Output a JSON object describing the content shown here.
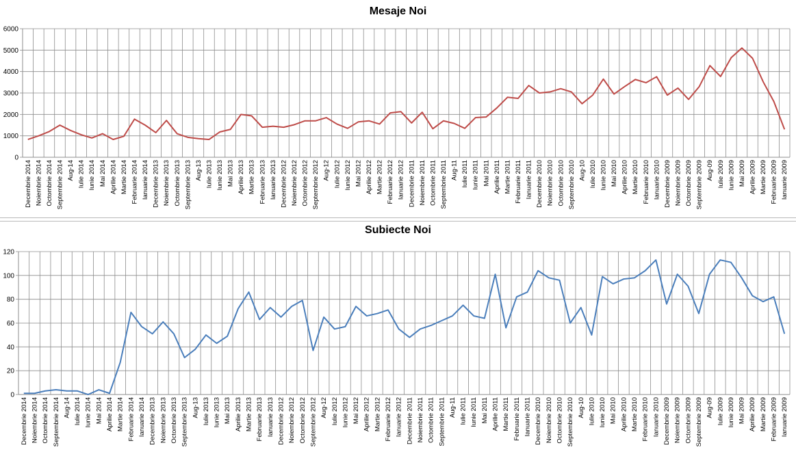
{
  "chart_data": [
    {
      "type": "line",
      "title": "Mesaje Noi",
      "color": "#be4b48",
      "ylim": [
        0,
        6000
      ],
      "yticks": [
        0,
        1000,
        2000,
        3000,
        4000,
        5000,
        6000
      ],
      "grid": true,
      "categories": [
        "Decembrie 2014",
        "Noiembrie 2014",
        "Octombrie 2014",
        "Septembrie 2014",
        "Aug-14",
        "Iulie 2014",
        "Iunie 2014",
        "Mai 2014",
        "Aprilie 2014",
        "Martie 2014",
        "Februarie 2014",
        "Ianuarie 2014",
        "Decembrie 2013",
        "Noiembrie 2013",
        "Octombrie 2013",
        "Septembrie 2013",
        "Aug-13",
        "Iulie 2013",
        "Iunie 2013",
        "Mai 2013",
        "Aprilie 2013",
        "Martie 2013",
        "Februarie 2013",
        "Ianuarie 2013",
        "Decembrie 2012",
        "Noiembrie 2012",
        "Octombrie 2012",
        "Septembrie 2012",
        "Aug-12",
        "Iulie 2012",
        "Iunie 2012",
        "Mai 2012",
        "Aprilie 2012",
        "Martie 2012",
        "Februarie 2012",
        "Ianuarie 2012",
        "Decembrie 2011",
        "Noiembrie 2011",
        "Octombrie 2011",
        "Septembrie 2011",
        "Aug-11",
        "Iulie 2011",
        "Iunie 2011",
        "Mai 2011",
        "Aprilie 2011",
        "Martie 2011",
        "Februarie 2011",
        "Ianuarie 2011",
        "Decembrie 2010",
        "Noiembrie 2010",
        "Octombrie 2010",
        "Septembrie 2010",
        "Aug-10",
        "Iulie 2010",
        "Iunie 2010",
        "Mai 2010",
        "Aprilie 2010",
        "Martie 2010",
        "Februarie 2010",
        "Ianuarie 2010",
        "Decembrie 2009",
        "Noiembrie 2009",
        "Octombrie 2009",
        "Septembrie 2009",
        "Aug-09",
        "Iulie 2009",
        "Iunie 2009",
        "Mai 2009",
        "Aprilie 2009",
        "Martie 2009",
        "Februarie 2009",
        "Ianuarie 2009"
      ],
      "values": [
        830,
        1000,
        1200,
        1500,
        1250,
        1050,
        900,
        1100,
        830,
        980,
        1780,
        1500,
        1150,
        1720,
        1100,
        930,
        870,
        830,
        1180,
        1300,
        2000,
        1930,
        1400,
        1450,
        1400,
        1520,
        1700,
        1700,
        1850,
        1550,
        1350,
        1650,
        1700,
        1550,
        2070,
        2130,
        1600,
        2100,
        1330,
        1700,
        1580,
        1350,
        1850,
        1880,
        2300,
        2800,
        2750,
        3350,
        3000,
        3050,
        3200,
        3050,
        2500,
        2900,
        3650,
        2950,
        3300,
        3630,
        3480,
        3760,
        2900,
        3230,
        2700,
        3300,
        4280,
        3770,
        4650,
        5100,
        4620,
        3520,
        2600,
        1300
      ]
    },
    {
      "type": "line",
      "title": "Subiecte Noi",
      "color": "#4a7ebb",
      "ylim": [
        0,
        120
      ],
      "yticks": [
        0,
        20,
        40,
        60,
        80,
        100,
        120
      ],
      "grid": true,
      "categories": [
        "Decembrie 2014",
        "Noiembrie 2014",
        "Octombrie 2014",
        "Septembrie 2014",
        "Aug-14",
        "Iulie 2014",
        "Iunie 2014",
        "Mai 2014",
        "Aprilie 2014",
        "Martie 2014",
        "Februarie 2014",
        "Ianuarie 2014",
        "Decembrie 2013",
        "Noiembrie 2013",
        "Octombrie 2013",
        "Septembrie 2013",
        "Aug-13",
        "Iulie 2013",
        "Iunie 2013",
        "Mai 2013",
        "Aprilie 2013",
        "Martie 2013",
        "Februarie 2013",
        "Ianuarie 2013",
        "Decembrie 2012",
        "Noiembrie 2012",
        "Octombrie 2012",
        "Septembrie 2012",
        "Aug-12",
        "Iulie 2012",
        "Iunie 2012",
        "Mai 2012",
        "Aprilie 2012",
        "Martie 2012",
        "Februarie 2012",
        "Ianuarie 2012",
        "Decembrie 2011",
        "Noiembrie 2011",
        "Octombrie 2011",
        "Septembrie 2011",
        "Aug-11",
        "Iulie 2011",
        "Iunie 2011",
        "Mai 2011",
        "Aprilie 2011",
        "Martie 2011",
        "Februarie 2011",
        "Ianuarie 2011",
        "Decembrie 2010",
        "Noiembrie 2010",
        "Octombrie 2010",
        "Septembrie 2010",
        "Aug-10",
        "Iulie 2010",
        "Iunie 2010",
        "Mai 2010",
        "Aprilie 2010",
        "Martie 2010",
        "Februarie 2010",
        "Ianuarie 2010",
        "Decembrie 2009",
        "Noiembrie 2009",
        "Octombrie 2009",
        "Septembrie 2009",
        "Aug-09",
        "Iulie 2009",
        "Iunie 2009",
        "Mai 2009",
        "Aprilie 2009",
        "Martie 2009",
        "Februarie 2009",
        "Ianuarie 2009"
      ],
      "values": [
        1,
        1,
        3,
        4,
        3,
        3,
        0,
        4,
        1,
        27,
        69,
        57,
        51,
        61,
        51,
        31,
        38,
        50,
        43,
        49,
        72,
        86,
        63,
        73,
        65,
        74,
        79,
        37,
        65,
        55,
        57,
        74,
        66,
        68,
        71,
        55,
        48,
        55,
        58,
        62,
        66,
        75,
        66,
        64,
        101,
        56,
        82,
        86,
        104,
        98,
        96,
        60,
        73,
        50,
        99,
        93,
        97,
        98,
        104,
        113,
        76,
        101,
        91,
        68,
        101,
        113,
        111,
        98,
        83,
        78,
        82,
        51
      ]
    }
  ]
}
